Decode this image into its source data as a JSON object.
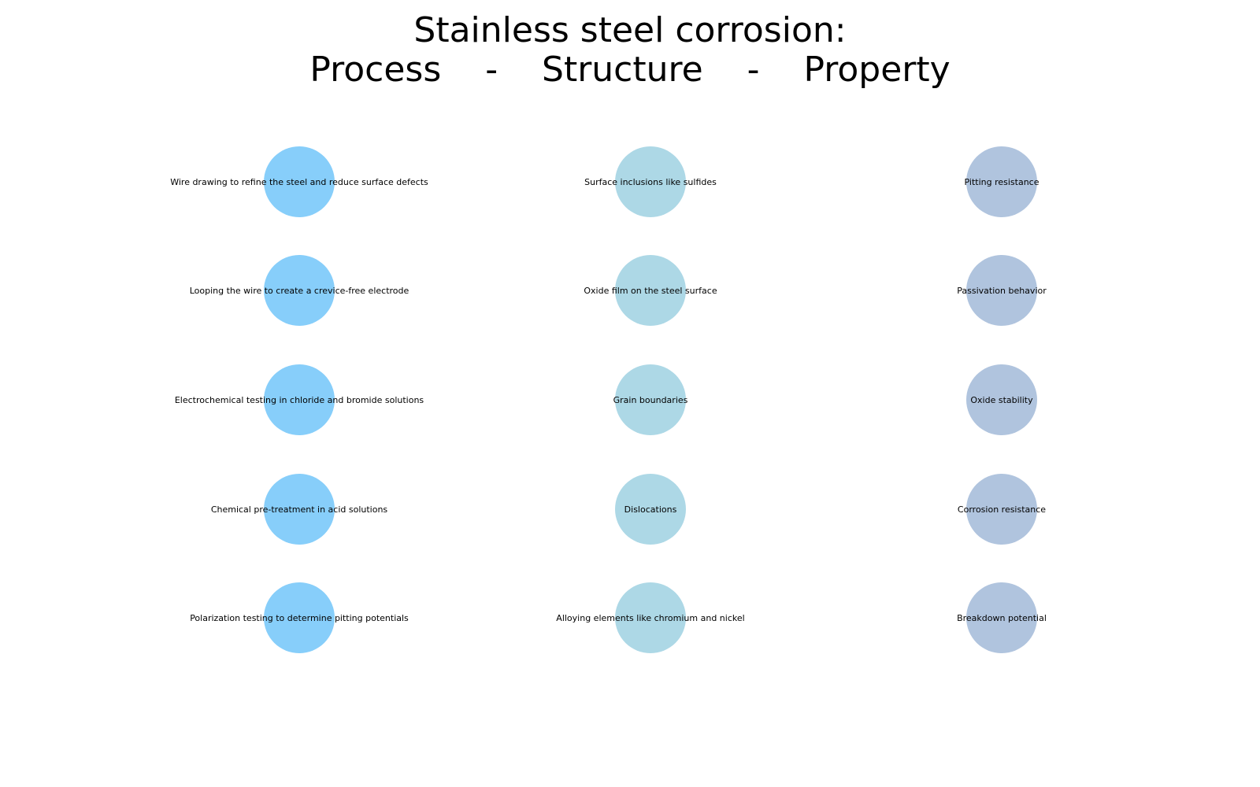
{
  "title": {
    "line1": "Stainless steel corrosion:",
    "line2": "Process    -    Structure    -    Property"
  },
  "colors": {
    "process": "#87CEFA",
    "structure": "#ADD8E6",
    "property": "#B0C4DE"
  },
  "columns": [
    {
      "id": "process",
      "nodes": [
        "Wire drawing to refine the steel and reduce surface defects",
        "Looping the wire to create a crevice-free electrode",
        "Electrochemical testing in chloride and bromide solutions",
        "Chemical pre-treatment in acid solutions",
        "Polarization testing to determine pitting potentials"
      ]
    },
    {
      "id": "structure",
      "nodes": [
        "Surface inclusions like sulfides",
        "Oxide film on the steel surface",
        "Grain boundaries",
        "Dislocations",
        "Alloying elements like chromium and nickel"
      ]
    },
    {
      "id": "property",
      "nodes": [
        "Pitting resistance",
        "Passivation behavior",
        "Oxide stability",
        "Corrosion resistance",
        "Breakdown potential"
      ]
    }
  ]
}
